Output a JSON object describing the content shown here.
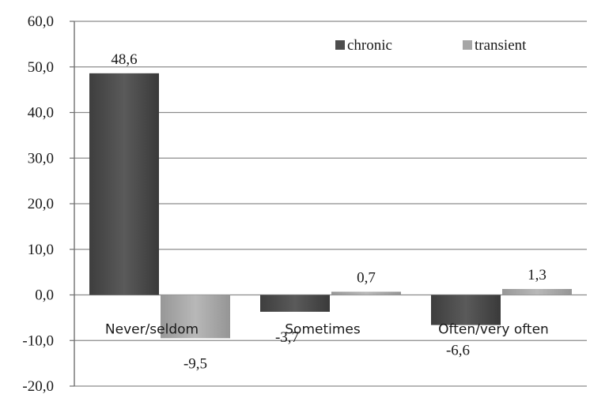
{
  "chart_data": {
    "type": "bar",
    "categories": [
      "Never/seldom",
      "Sometimes",
      "Often/very often"
    ],
    "series": [
      {
        "name": "chronic",
        "values": [
          48.6,
          -3.7,
          -6.6
        ],
        "labels": [
          "48,6",
          "-3,7",
          "-6,6"
        ],
        "color": "#4d4d4d"
      },
      {
        "name": "transient",
        "values": [
          -9.5,
          0.7,
          1.3
        ],
        "labels": [
          "-9,5",
          "0,7",
          "1,3"
        ],
        "color": "#a6a6a6"
      }
    ],
    "y_ticks": [
      {
        "value": 60,
        "label": "60,0"
      },
      {
        "value": 50,
        "label": "50,0"
      },
      {
        "value": 40,
        "label": "40,0"
      },
      {
        "value": 30,
        "label": "30,0"
      },
      {
        "value": 20,
        "label": "20,0"
      },
      {
        "value": 10,
        "label": "10,0"
      },
      {
        "value": 0,
        "label": "0,0"
      },
      {
        "value": -10,
        "label": "-10,0"
      },
      {
        "value": -20,
        "label": "-20,0"
      }
    ],
    "ylim": [
      -20,
      60
    ],
    "grid": true,
    "legend_position": "top-right",
    "title": "",
    "xlabel": "",
    "ylabel": ""
  }
}
